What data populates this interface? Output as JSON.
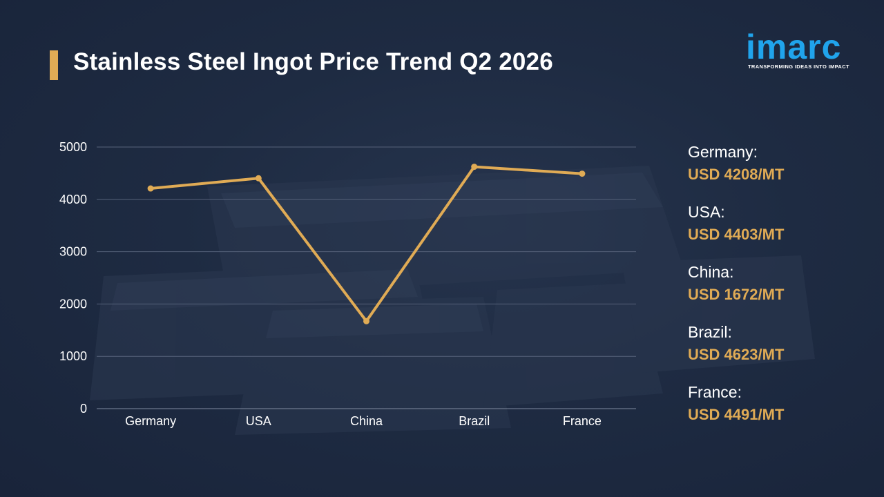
{
  "title": "Stainless Steel Ingot Price Trend Q2 2026",
  "logo": {
    "word": "imarc",
    "tagline": "TRANSFORMING IDEAS INTO IMPACT"
  },
  "colors": {
    "accent": "#e0ab55",
    "brand": "#20a4ec",
    "background": "#1e2b42"
  },
  "chart_data": {
    "type": "line",
    "categories": [
      "Germany",
      "USA",
      "China",
      "Brazil",
      "France"
    ],
    "series": [
      {
        "values": [
          4208,
          4403,
          1672,
          4623,
          4491
        ]
      }
    ],
    "ylim": [
      0,
      5000
    ],
    "yticks": [
      0,
      1000,
      2000,
      3000,
      4000,
      5000
    ],
    "xlabel": "",
    "ylabel": "",
    "grid": true
  },
  "legend": [
    {
      "name": "Germany:",
      "value": "USD 4208/MT"
    },
    {
      "name": "USA:",
      "value": "USD 4403/MT"
    },
    {
      "name": "China:",
      "value": "USD 1672/MT"
    },
    {
      "name": "Brazil:",
      "value": "USD 4623/MT"
    },
    {
      "name": "France:",
      "value": "USD 4491/MT"
    }
  ]
}
